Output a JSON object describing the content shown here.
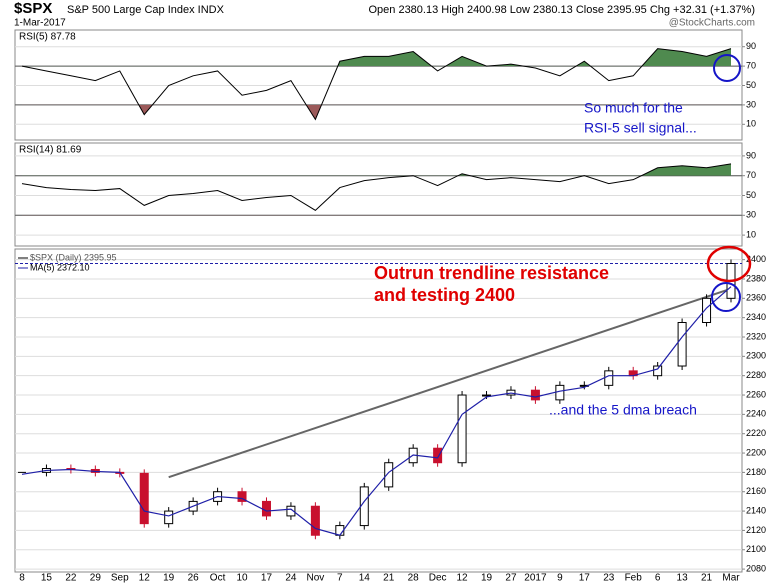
{
  "header": {
    "title": "$SPX",
    "subtitle": "S&P 500 Large Cap Index INDX",
    "date": "1-Mar-2017",
    "stats": "Open 2380.13 High 2400.98 Low 2380.13 Close 2395.95 Chg +32.31 (+1.37%)",
    "credit": "@StockCharts.com"
  },
  "chart_data": [
    {
      "type": "line",
      "title": "RSI(5) 87.78",
      "color": "#000000",
      "up_color": "#4f8a4f",
      "down_color": "#9c5a5a",
      "values": [
        70,
        65,
        60,
        55,
        65,
        20,
        50,
        60,
        65,
        40,
        45,
        55,
        15,
        75,
        80,
        80,
        85,
        65,
        80,
        70,
        72,
        68,
        60,
        75,
        55,
        60,
        88,
        85,
        80,
        88
      ],
      "ylim": [
        0,
        100
      ],
      "yticks": [
        10,
        30,
        50,
        70,
        90
      ],
      "overbought": 70,
      "oversold": 30,
      "annotation": [
        "So much for the",
        "RSI-5 sell signal..."
      ]
    },
    {
      "type": "line",
      "title": "RSI(14) 81.69",
      "color": "#000000",
      "up_color": "#4f8a4f",
      "down_color": "#9c5a5a",
      "values": [
        62,
        58,
        56,
        55,
        57,
        40,
        50,
        52,
        55,
        45,
        48,
        50,
        35,
        58,
        65,
        68,
        70,
        60,
        72,
        66,
        68,
        66,
        64,
        70,
        62,
        66,
        78,
        80,
        78,
        82
      ],
      "ylim": [
        0,
        100
      ],
      "yticks": [
        10,
        30,
        50,
        70,
        90
      ],
      "overbought": 70,
      "oversold": 30
    },
    {
      "type": "candlestick",
      "categories": [
        "8",
        "15",
        "22",
        "29",
        "Sep",
        "12",
        "19",
        "26",
        "Oct",
        "10",
        "17",
        "24",
        "Nov",
        "7",
        "14",
        "21",
        "28",
        "Dec",
        "12",
        "19",
        "27",
        "2017",
        "9",
        "17",
        "23",
        "Feb",
        "6",
        "13",
        "21",
        "Mar"
      ],
      "series": [
        {
          "name": "$SPX (Daily) 2395.95",
          "color": "#000000",
          "down_color": "#c8102e",
          "values": [
            2180,
            2184,
            2183,
            2180,
            2179,
            2127,
            2140,
            2150,
            2160,
            2150,
            2135,
            2145,
            2115,
            2125,
            2165,
            2190,
            2205,
            2190,
            2260,
            2260,
            2265,
            2255,
            2270,
            2270,
            2285,
            2280,
            2290,
            2335,
            2360,
            2396
          ]
        },
        {
          "name": "MA(5) 2372.10",
          "color": "#1f1fa8",
          "values": [
            2178,
            2182,
            2183,
            2181,
            2180,
            2140,
            2135,
            2145,
            2155,
            2153,
            2140,
            2142,
            2122,
            2115,
            2150,
            2180,
            2198,
            2195,
            2240,
            2258,
            2262,
            2258,
            2264,
            2268,
            2280,
            2280,
            2287,
            2320,
            2350,
            2372
          ]
        }
      ],
      "ylim": [
        2077,
        2411
      ],
      "yticks": [
        2080,
        2100,
        2120,
        2140,
        2160,
        2180,
        2200,
        2220,
        2240,
        2260,
        2280,
        2300,
        2320,
        2340,
        2360,
        2380,
        2400
      ],
      "trendline": {
        "x": [
          "19",
          "Mar"
        ],
        "y": [
          2175,
          2370
        ]
      },
      "annotations": [
        {
          "lines": [
            "Outrun trendline resistance",
            "and testing 2400"
          ],
          "color": "#e00000"
        },
        {
          "lines": [
            "...and the 5 dma breach"
          ],
          "color": "#1515c8"
        }
      ]
    }
  ]
}
